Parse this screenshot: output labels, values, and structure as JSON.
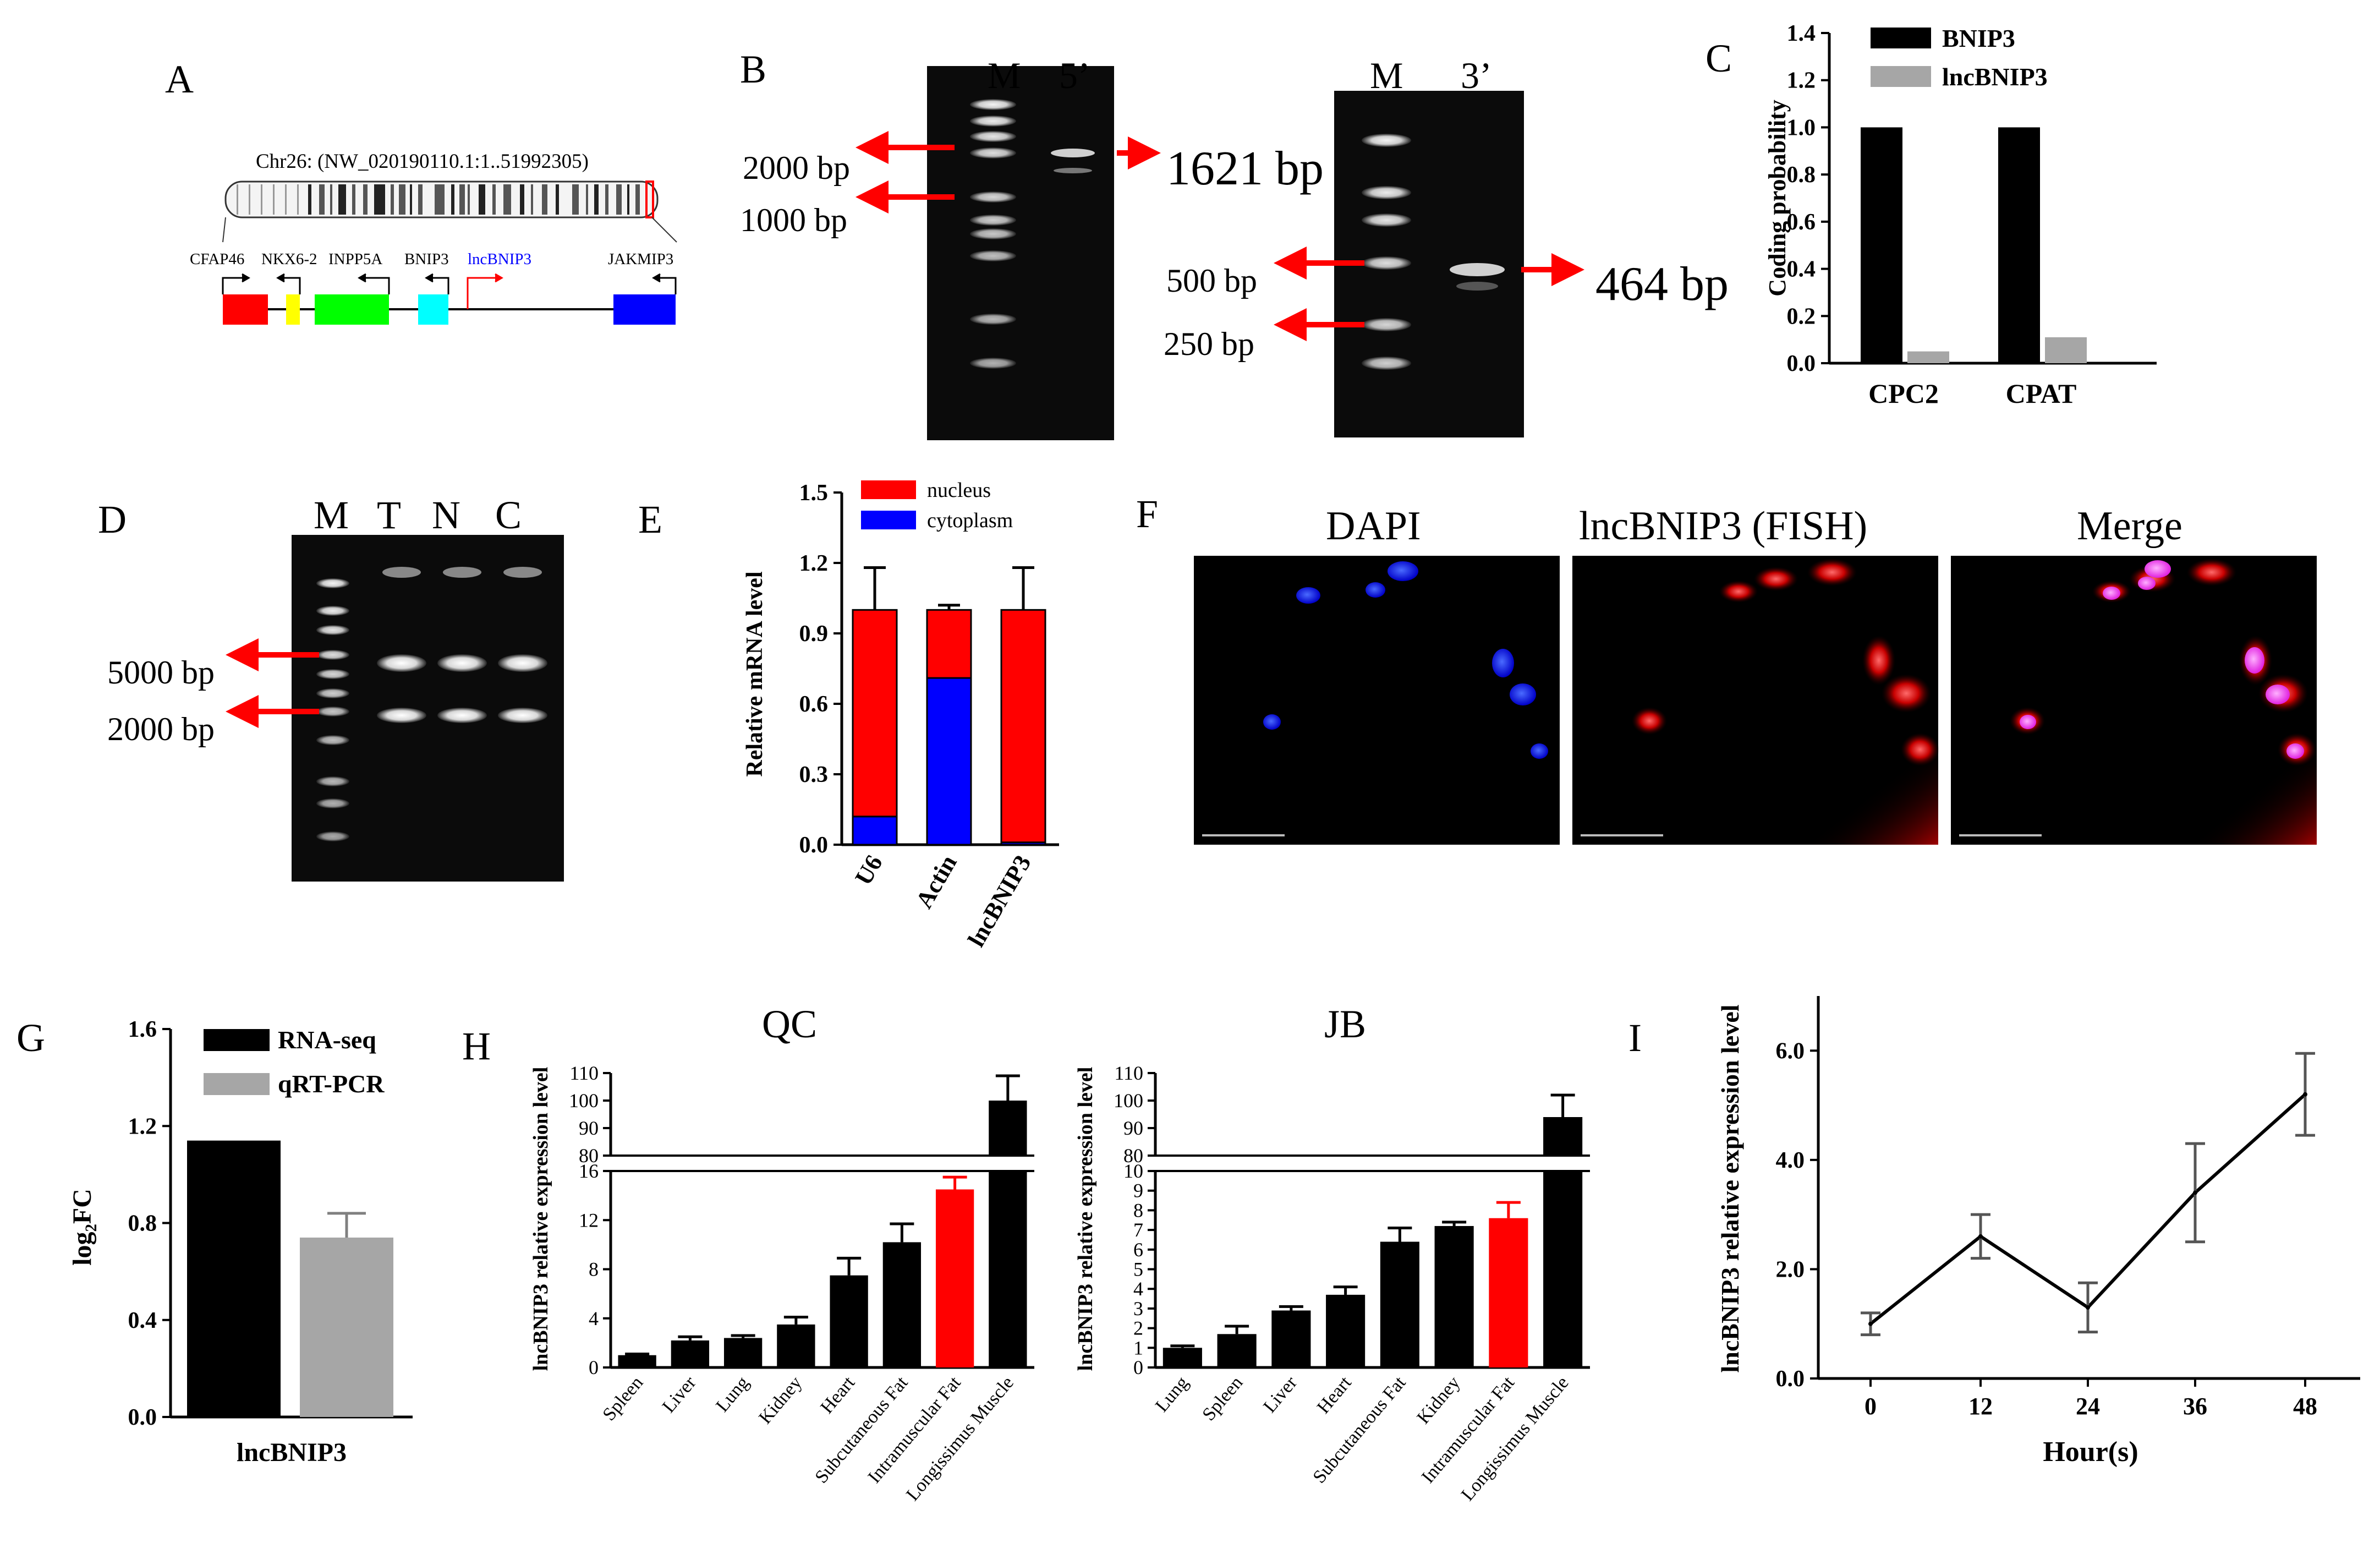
{
  "panels": {
    "A": "A",
    "B": "B",
    "C": "C",
    "D": "D",
    "E": "E",
    "F": "F",
    "G": "G",
    "H": "H",
    "I": "I"
  },
  "panel_a": {
    "chromosome_label": "Chr26: (NW_020190110.1:1..51992305)",
    "genes": [
      {
        "name": "CFAP46",
        "color": "#ff0000"
      },
      {
        "name": "NKX6-2",
        "color": "#ffff00"
      },
      {
        "name": "INPP5A",
        "color": "#00ff00"
      },
      {
        "name": "BNIP3",
        "color": "#00ffff"
      },
      {
        "name": "lncBNIP3",
        "color": "#0000ff"
      },
      {
        "name": "JAKMIP3",
        "color": "#0000ff"
      }
    ]
  },
  "panel_b": {
    "gel1": {
      "lanes": [
        "M",
        "5’"
      ],
      "ladder": [
        "2000 bp",
        "1000 bp"
      ],
      "product": "1621 bp"
    },
    "gel2": {
      "lanes": [
        "M",
        "3’"
      ],
      "ladder": [
        "500 bp",
        "250 bp"
      ],
      "product": "464 bp"
    }
  },
  "panel_d": {
    "lanes": [
      "M",
      "T",
      "N",
      "C"
    ],
    "ladder": [
      "5000 bp",
      "2000 bp"
    ]
  },
  "panel_f": {
    "titles": [
      "DAPI",
      "lncBNIP3 (FISH)",
      "Merge"
    ]
  },
  "chart_data": [
    {
      "id": "C",
      "type": "bar",
      "categories": [
        "CPC2",
        "CPAT"
      ],
      "series": [
        {
          "name": "BNIP3",
          "values": [
            1.0,
            1.0
          ],
          "color": "#000000"
        },
        {
          "name": "lncBNIP3",
          "values": [
            0.05,
            0.11
          ],
          "color": "#a6a6a6"
        }
      ],
      "ylabel": "Coding probability",
      "ylim": [
        0,
        1.4
      ],
      "yticks": [
        "0.0",
        "0.2",
        "0.4",
        "0.6",
        "0.8",
        "1.0",
        "1.2",
        "1.4"
      ]
    },
    {
      "id": "E",
      "type": "bar",
      "stacked": true,
      "categories": [
        "U6",
        "Actin",
        "lncBNIP3"
      ],
      "series": [
        {
          "name": "cytoplasm",
          "values": [
            0.12,
            0.71,
            0.01
          ],
          "errors": [
            0.01,
            0.05,
            0.0
          ],
          "color": "#0000ff"
        },
        {
          "name": "nucleus",
          "values": [
            0.88,
            0.29,
            0.99
          ],
          "errors": [
            0.18,
            0.02,
            0.18
          ],
          "color": "#ff0000"
        }
      ],
      "legend": [
        "nucleus",
        "cytoplasm"
      ],
      "ylabel": "Relative mRNA level",
      "ylim": [
        0,
        1.5
      ],
      "yticks": [
        "0.0",
        "0.3",
        "0.6",
        "0.9",
        "1.2",
        "1.5"
      ]
    },
    {
      "id": "G",
      "type": "bar",
      "categories": [
        "lncBNIP3"
      ],
      "series": [
        {
          "name": "RNA-seq",
          "values": [
            1.14
          ],
          "errors": [
            0
          ],
          "color": "#000000"
        },
        {
          "name": "qRT-PCR",
          "values": [
            0.74
          ],
          "errors": [
            0.1
          ],
          "color": "#a6a6a6"
        }
      ],
      "ylabel": "log₂FC",
      "ylim": [
        0,
        1.6
      ],
      "yticks": [
        "0.0",
        "0.4",
        "0.8",
        "1.2",
        "1.6"
      ]
    },
    {
      "id": "H_QC",
      "type": "bar",
      "title": "QC",
      "broken_axis": true,
      "categories": [
        "Spleen",
        "Liver",
        "Lung",
        "Kidney",
        "Heart",
        "Subcutaneous Fat",
        "Intramuscular Fat",
        "Longissimus Muscle"
      ],
      "values": [
        1.0,
        2.2,
        2.4,
        3.5,
        7.5,
        10.2,
        14.5,
        100
      ],
      "errors": [
        0.1,
        0.3,
        0.2,
        0.6,
        1.4,
        1.5,
        1.0,
        9
      ],
      "highlight": "Intramuscular Fat",
      "ylabel": "lncBNIP3 relative expression level",
      "yticks_low": [
        "0",
        "4",
        "8",
        "12",
        "16"
      ],
      "yticks_high": [
        "80",
        "90",
        "100",
        "110"
      ]
    },
    {
      "id": "H_JB",
      "type": "bar",
      "title": "JB",
      "broken_axis": true,
      "categories": [
        "Lung",
        "Spleen",
        "Liver",
        "Heart",
        "Subcutaneous Fat",
        "Kidney",
        "Intramuscular Fat",
        "Longissimus Muscle"
      ],
      "values": [
        1.0,
        1.7,
        2.9,
        3.7,
        6.4,
        7.2,
        7.6,
        94
      ],
      "errors": [
        0.1,
        0.4,
        0.2,
        0.4,
        0.7,
        0.2,
        0.8,
        8
      ],
      "highlight": "Intramuscular Fat",
      "ylabel": "lncBNIP3 relative expression level",
      "yticks_low": [
        "0",
        "1",
        "2",
        "3",
        "4",
        "5",
        "6",
        "7",
        "8",
        "9",
        "10"
      ],
      "yticks_high": [
        "80",
        "90",
        "100",
        "110"
      ]
    },
    {
      "id": "I",
      "type": "line",
      "x": [
        0,
        12,
        24,
        36,
        48
      ],
      "y": [
        1.0,
        2.6,
        1.3,
        3.4,
        5.2
      ],
      "errors": [
        0.2,
        0.4,
        0.45,
        0.9,
        0.75
      ],
      "xlabel": "Hour(s)",
      "ylabel": "lncBNIP3 relative expression level",
      "ylim": [
        0,
        7
      ],
      "xticks": [
        "0",
        "12",
        "24",
        "36",
        "48"
      ],
      "yticks": [
        "0.0",
        "2.0",
        "4.0",
        "6.0"
      ]
    }
  ],
  "colors": {
    "red": "#ff0000",
    "blue": "#0000ff",
    "black": "#000000",
    "gray": "#a6a6a6",
    "magenta": "#ff33ff"
  }
}
